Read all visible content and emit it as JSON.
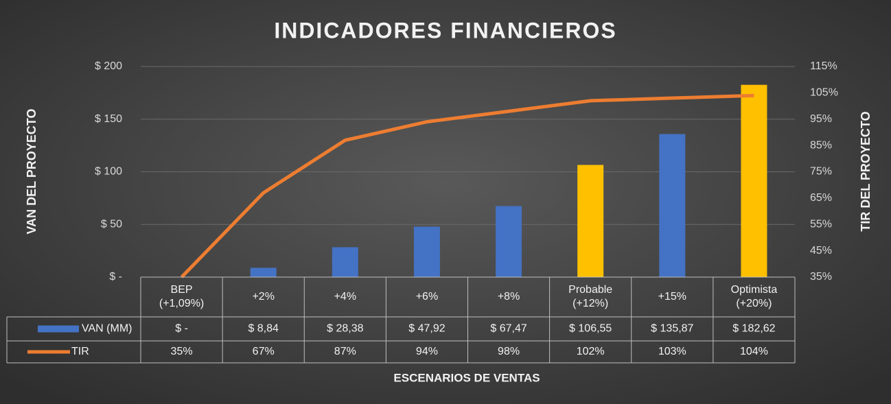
{
  "chart_data": {
    "type": "bar",
    "title": "INDICADORES FINANCIEROS",
    "y_label": "VAN DEL PROYECTO",
    "y2_label": "TIR DEL PROYECTO",
    "x_label": "ESCENARIOS DE VENTAS",
    "categories": [
      "BEP (+1,09%)",
      "+2%",
      "+4%",
      "+6%",
      "+8%",
      "Probable (+12%)",
      "+15%",
      "Optimista (+20%)"
    ],
    "ylim": [
      0,
      200
    ],
    "yticks": [
      {
        "value": 0,
        "label": "$ -"
      },
      {
        "value": 50,
        "label": "$ 50"
      },
      {
        "value": 100,
        "label": "$ 100"
      },
      {
        "value": 150,
        "label": "$ 150"
      },
      {
        "value": 200,
        "label": "$ 200"
      }
    ],
    "y2lim": [
      35,
      115
    ],
    "y2ticks": [
      {
        "value": 35,
        "label": "35%"
      },
      {
        "value": 45,
        "label": "45%"
      },
      {
        "value": 55,
        "label": "55%"
      },
      {
        "value": 65,
        "label": "65%"
      },
      {
        "value": 75,
        "label": "75%"
      },
      {
        "value": 85,
        "label": "85%"
      },
      {
        "value": 95,
        "label": "95%"
      },
      {
        "value": 105,
        "label": "105%"
      },
      {
        "value": 115,
        "label": "115%"
      }
    ],
    "grid": true,
    "series": [
      {
        "name": "VAN (MM)",
        "type": "bar",
        "color": "#4472c4",
        "colors": [
          "#4472c4",
          "#4472c4",
          "#4472c4",
          "#4472c4",
          "#4472c4",
          "#ffc000",
          "#4472c4",
          "#ffc000"
        ],
        "values": [
          0,
          8.84,
          28.38,
          47.92,
          67.47,
          106.55,
          135.87,
          182.62
        ],
        "value_labels": [
          "$ -",
          "$ 8,84",
          "$ 28,38",
          "$ 47,92",
          "$ 67,47",
          "$ 106,55",
          "$ 135,87",
          "$ 182,62"
        ]
      },
      {
        "name": "TIR",
        "type": "line",
        "axis": "y2",
        "color": "#ed7d31",
        "values": [
          35,
          67,
          87,
          94,
          98,
          102,
          103,
          104
        ],
        "value_labels": [
          "35%",
          "67%",
          "87%",
          "94%",
          "98%",
          "102%",
          "103%",
          "104%"
        ]
      }
    ]
  }
}
